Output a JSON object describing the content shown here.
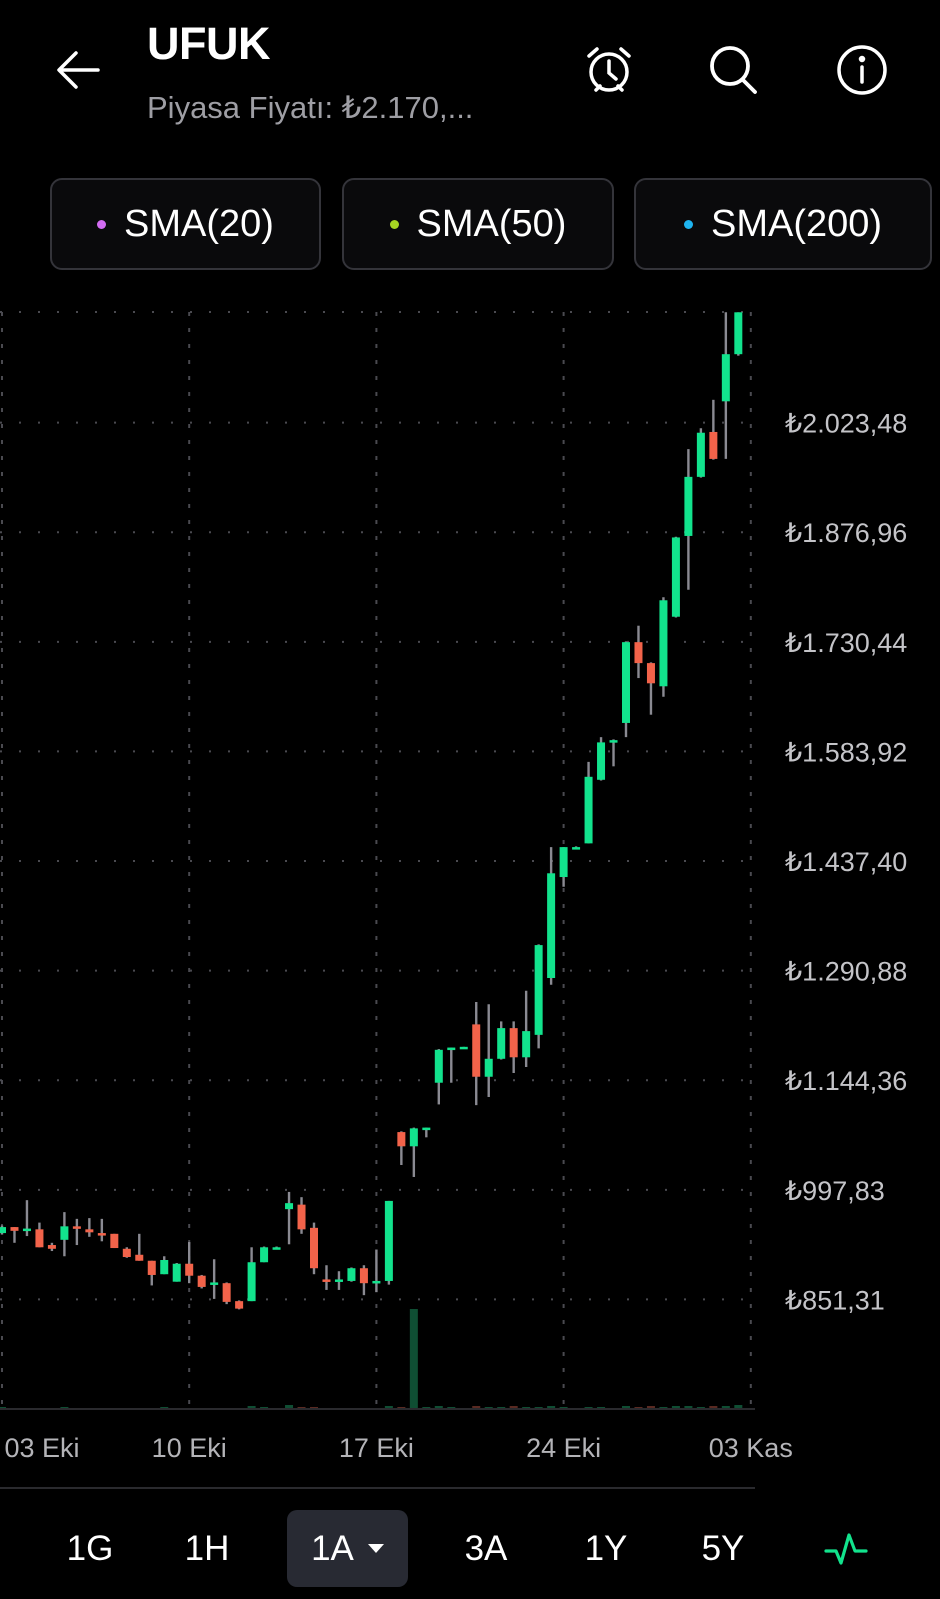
{
  "header": {
    "title": "UFUK",
    "subtitle": "Piyasa Fiyatı: ₺2.170,...",
    "icons": [
      "back-arrow-icon",
      "alarm-clock-icon",
      "search-icon",
      "info-icon"
    ]
  },
  "indicators": [
    {
      "label": "SMA(20)",
      "color": "#d26cf2"
    },
    {
      "label": "SMA(50)",
      "color": "#a6d422"
    },
    {
      "label": "SMA(200)",
      "color": "#1eb4f0"
    }
  ],
  "timeframes": {
    "items": [
      "1G",
      "1H",
      "1A",
      "3A",
      "1Y",
      "5Y"
    ],
    "selected": "1A",
    "chart_type_icon": "pulse-line-icon"
  },
  "colors": {
    "up": "#12e38d",
    "down": "#f2634a",
    "wick": "#8a8a92",
    "volume_up": "#0f4e33",
    "accent": "#12e38d"
  },
  "chart_data": {
    "type": "candlestick",
    "currency": "₺",
    "ylim": [
      704.8,
      2171.4
    ],
    "grid": true,
    "y_ticks": [
      "₺2.023,48",
      "₺1.876,96",
      "₺1.730,44",
      "₺1.583,92",
      "₺1.437,40",
      "₺1.290,88",
      "₺1.144,36",
      "₺997,83",
      "₺851,31"
    ],
    "y_tick_values": [
      2023.48,
      1876.96,
      1730.44,
      1583.92,
      1437.4,
      1290.88,
      1144.36,
      997.83,
      851.31
    ],
    "x_ticks": [
      {
        "label": "03 Eki",
        "index": 0
      },
      {
        "label": "10 Eki",
        "index": 15
      },
      {
        "label": "17 Eki",
        "index": 30
      },
      {
        "label": "24 Eki",
        "index": 45
      },
      {
        "label": "03 Kas",
        "index": 60
      }
    ],
    "ohlc": [
      [
        940,
        950,
        938,
        948
      ],
      [
        948,
        948,
        927,
        943
      ],
      [
        945,
        984,
        936,
        946
      ],
      [
        945,
        954,
        921,
        921
      ],
      [
        924,
        927,
        916,
        919
      ],
      [
        931,
        968,
        909,
        949
      ],
      [
        949,
        959,
        924,
        947
      ],
      [
        945,
        960,
        935,
        941
      ],
      [
        940,
        959,
        929,
        939
      ],
      [
        939,
        939,
        920,
        920
      ],
      [
        919,
        921,
        907,
        908
      ],
      [
        911,
        939,
        903,
        903
      ],
      [
        903,
        903,
        870,
        884
      ],
      [
        885,
        909,
        885,
        904
      ],
      [
        875,
        900,
        875,
        899
      ],
      [
        899,
        928,
        873,
        883
      ],
      [
        883,
        884,
        866,
        868
      ],
      [
        872,
        905,
        852,
        874
      ],
      [
        873,
        874,
        845,
        848
      ],
      [
        849,
        850,
        838,
        839
      ],
      [
        849,
        921,
        849,
        901
      ],
      [
        901,
        922,
        901,
        921
      ],
      [
        921,
        922,
        920,
        921
      ],
      [
        972,
        995,
        925,
        980
      ],
      [
        978,
        988,
        939,
        945
      ],
      [
        947,
        954,
        885,
        893
      ],
      [
        878,
        897,
        864,
        877
      ],
      [
        876,
        889,
        864,
        878
      ],
      [
        876,
        894,
        875,
        893
      ],
      [
        893,
        897,
        857,
        873
      ],
      [
        874,
        918,
        861,
        876
      ],
      [
        876,
        983,
        871,
        983
      ],
      [
        1075,
        1076,
        1031,
        1056
      ],
      [
        1056,
        1081,
        1015,
        1080
      ],
      [
        1080,
        1081,
        1068,
        1081
      ],
      [
        1141,
        1186,
        1112,
        1185
      ],
      [
        1186,
        1188,
        1141,
        1188
      ],
      [
        1188,
        1189,
        1188,
        1189
      ],
      [
        1219,
        1249,
        1111,
        1149
      ],
      [
        1149,
        1246,
        1122,
        1173
      ],
      [
        1173,
        1223,
        1172,
        1214
      ],
      [
        1214,
        1223,
        1154,
        1175
      ],
      [
        1175,
        1264,
        1162,
        1210
      ],
      [
        1205,
        1326,
        1187,
        1325
      ],
      [
        1281,
        1456,
        1272,
        1421
      ],
      [
        1416,
        1456,
        1403,
        1456
      ],
      [
        1456,
        1457,
        1455,
        1456
      ],
      [
        1461,
        1570,
        1461,
        1550
      ],
      [
        1546,
        1603,
        1545,
        1596
      ],
      [
        1597,
        1600,
        1564,
        1599
      ],
      [
        1622,
        1731,
        1603,
        1730
      ],
      [
        1730,
        1752,
        1682,
        1702
      ],
      [
        1702,
        1703,
        1633,
        1675
      ],
      [
        1671,
        1790,
        1657,
        1786
      ],
      [
        1764,
        1871,
        1763,
        1870
      ],
      [
        1872,
        1988,
        1800,
        1951
      ],
      [
        1951,
        2016,
        1950,
        2010
      ],
      [
        2011,
        2054,
        1974,
        1975
      ],
      [
        2052,
        2171,
        1975,
        2115
      ],
      [
        2115,
        2171,
        2113,
        2171
      ]
    ],
    "volume_relative": [
      2,
      1,
      1,
      1,
      1,
      2,
      1,
      1,
      1,
      1,
      1,
      1,
      1,
      2,
      1,
      1,
      1,
      1,
      1,
      1,
      3,
      2,
      1,
      4,
      2,
      2,
      1,
      1,
      1,
      1,
      1,
      3,
      2,
      100,
      2,
      3,
      2,
      1,
      3,
      2,
      2,
      3,
      2,
      2,
      3,
      2,
      1,
      2,
      2,
      1,
      3,
      2,
      3,
      2,
      3,
      3,
      2,
      3,
      3,
      4
    ]
  }
}
